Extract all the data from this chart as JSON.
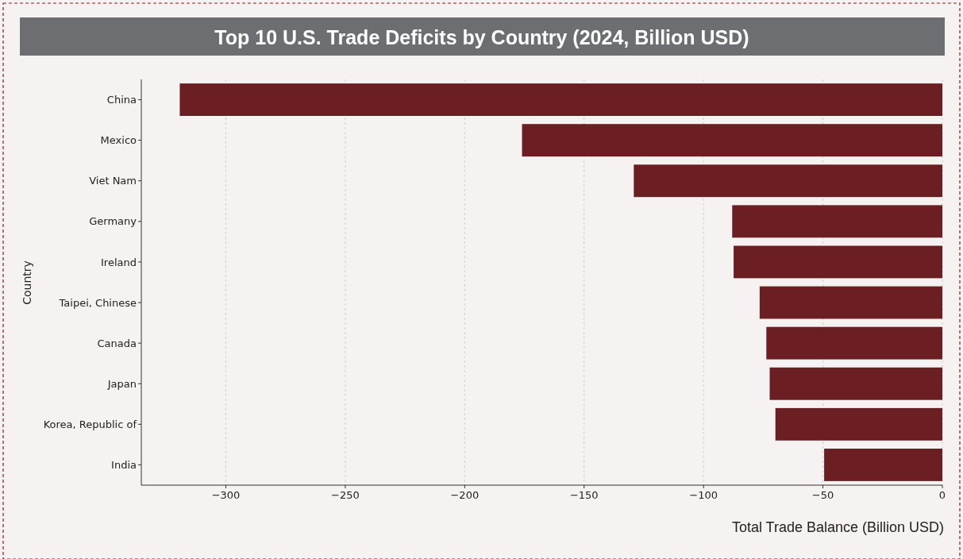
{
  "chart_data": {
    "type": "bar",
    "orientation": "horizontal",
    "title": "Top 10 U.S. Trade Deficits by Country (2024, Billion USD)",
    "xlabel": "Total Trade Balance (Billion USD)",
    "ylabel": "Country",
    "categories": [
      "China",
      "Mexico",
      "Viet Nam",
      "Germany",
      "Ireland",
      "Taipei, Chinese",
      "Canada",
      "Japan",
      "Korea, Republic of",
      "India"
    ],
    "values": [
      -319.3,
      -176,
      -129.2,
      -88,
      -87.4,
      -76.5,
      -73.7,
      -72.3,
      -69.9,
      -49.5
    ],
    "color": "#6b1f22",
    "xlim": [
      -335.4,
      0
    ],
    "xticks": [
      {
        "value": -300,
        "label": "−300"
      },
      {
        "value": -250,
        "label": "−250"
      },
      {
        "value": -200,
        "label": "−200"
      },
      {
        "value": -150,
        "label": "−150"
      },
      {
        "value": -100,
        "label": "−100"
      },
      {
        "value": -50,
        "label": "−50"
      },
      0
    ],
    "grid": "x"
  }
}
